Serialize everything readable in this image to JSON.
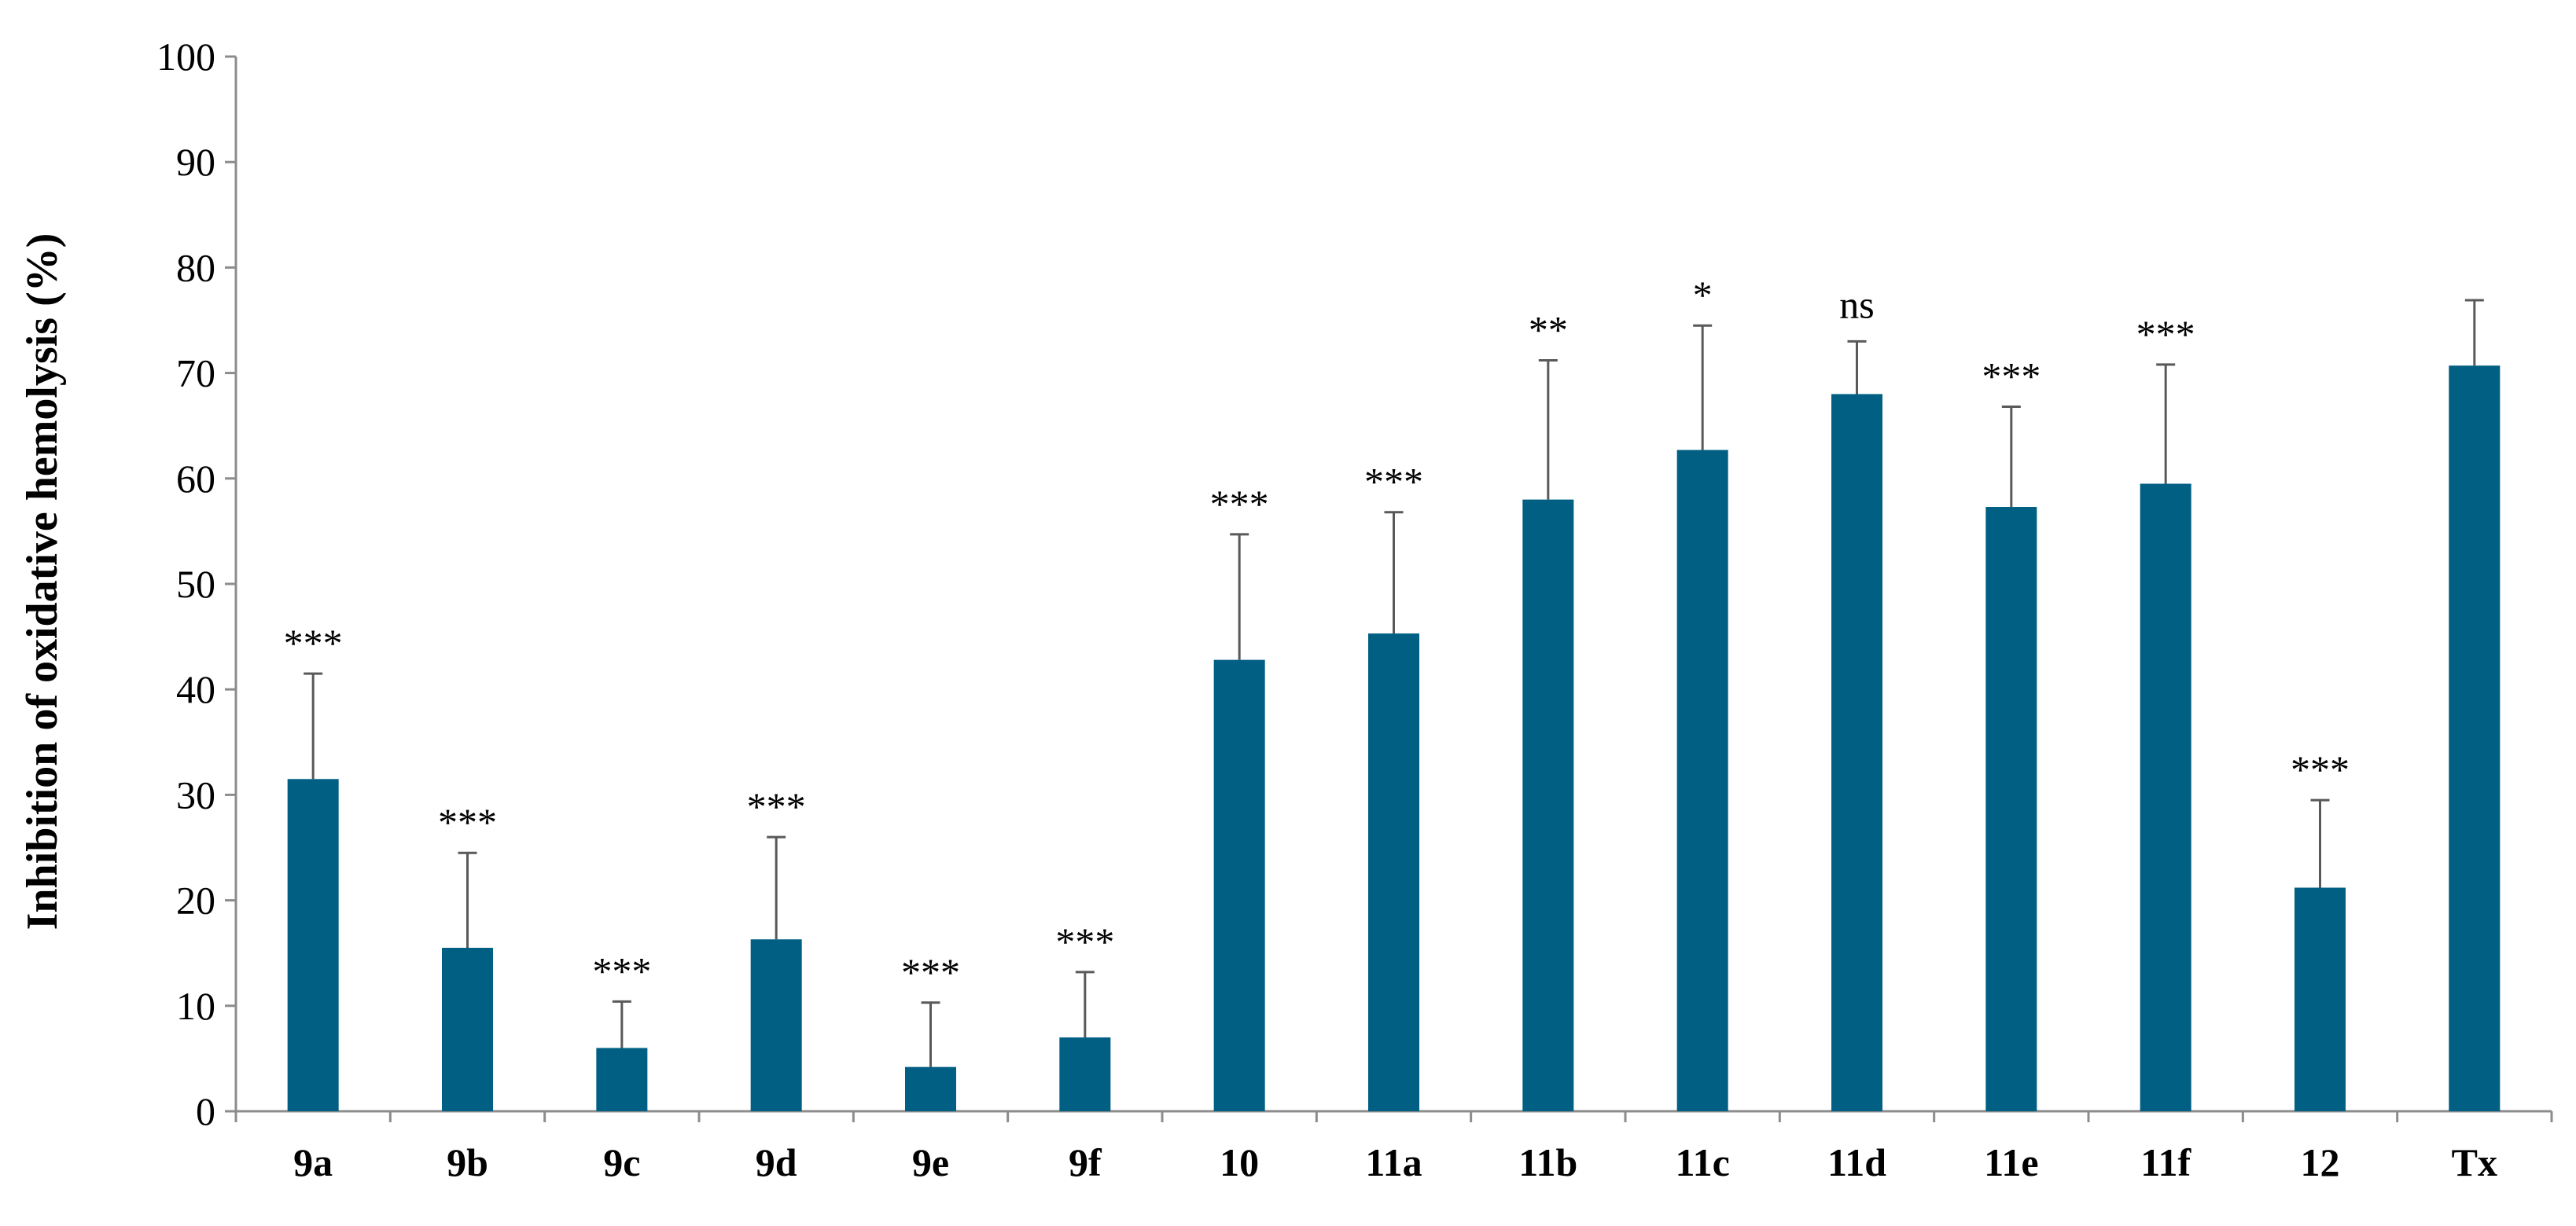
{
  "chart_data": {
    "type": "bar",
    "title": "",
    "xlabel": "",
    "ylabel": "Inhibition of oxidative hemolysis (%)",
    "ylim": [
      0,
      100
    ],
    "yticks": [
      0,
      10,
      20,
      30,
      40,
      50,
      60,
      70,
      80,
      90,
      100
    ],
    "ytick_labels": [
      "0",
      "10",
      "20",
      "30",
      "40",
      "50",
      "60",
      "70",
      "80",
      "90",
      "100"
    ],
    "grid": false,
    "legend": "none",
    "bar_color": "#005F83",
    "error_bar_color": "#595959",
    "categories": [
      "9a",
      "9b",
      "9c",
      "9d",
      "9e",
      "9f",
      "10",
      "11a",
      "11b",
      "11c",
      "11d",
      "11e",
      "11f",
      "12",
      "Tx"
    ],
    "series": [
      {
        "values": [
          31.5,
          15.5,
          6.0,
          16.3,
          4.2,
          7.0,
          42.8,
          45.3,
          58.0,
          62.7,
          68.0,
          57.3,
          59.5,
          21.2,
          70.7
        ],
        "error_upper": [
          10.0,
          9.0,
          4.4,
          9.7,
          6.1,
          6.2,
          11.9,
          11.5,
          13.2,
          11.8,
          5.0,
          9.5,
          11.3,
          8.3,
          6.2
        ],
        "significance": [
          "***",
          "***",
          "***",
          "***",
          "***",
          "***",
          "***",
          "***",
          "**",
          "*",
          "ns",
          "***",
          "***",
          "***",
          ""
        ]
      }
    ]
  }
}
